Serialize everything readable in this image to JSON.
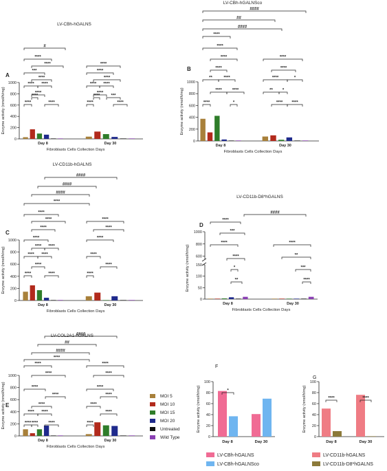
{
  "colors": {
    "moi5": "#a8803a",
    "moi10": "#b22a1c",
    "moi15": "#2f7d2a",
    "moi20": "#1f2a8c",
    "untreated": "#111111",
    "wildtype": "#8a3fb3",
    "f_cbh": "#f06b94",
    "f_cbhco": "#6fb5f0",
    "g_cd11b": "#ef7c84",
    "g_d8": "#8c7a3a"
  },
  "legend": {
    "items": [
      {
        "label": "MOI 5",
        "color": "#a8803a"
      },
      {
        "label": "MOI 10",
        "color": "#b22a1c"
      },
      {
        "label": "MOI 15",
        "color": "#2f7d2a"
      },
      {
        "label": "MOI 20",
        "color": "#1f2a8c"
      },
      {
        "label": "Untreated",
        "color": "#111111"
      },
      {
        "label": "Wild Type",
        "color": "#8a3fb3"
      }
    ]
  },
  "chart_data": [
    {
      "panel": "A",
      "type": "bar",
      "title": "LV-CBh-hGALNS",
      "xlabel": "Fibroblasts Cells Collection Days",
      "ylabel": "Enzyme activity (nmol/h/mg)",
      "ylim": [
        0,
        1000
      ],
      "yticks": [
        0,
        200,
        400,
        600,
        800,
        1000
      ],
      "categories": [
        "Day 8",
        "Day 30"
      ],
      "series": [
        {
          "name": "MOI 5",
          "values": [
            30,
            40
          ]
        },
        {
          "name": "MOI 10",
          "values": [
            170,
            130
          ]
        },
        {
          "name": "MOI 15",
          "values": [
            95,
            85
          ]
        },
        {
          "name": "MOI 20",
          "values": [
            75,
            35
          ]
        },
        {
          "name": "Untreated",
          "values": [
            3,
            3
          ]
        },
        {
          "name": "Wild Type",
          "values": [
            8,
            8
          ]
        }
      ],
      "annotations": [
        "****",
        "****",
        "****",
        "****",
        "****",
        "****",
        "****",
        "****",
        "***",
        "****",
        "#",
        "****",
        "****",
        "****",
        "****",
        "****",
        "****",
        "****",
        "****",
        "***",
        "****"
      ]
    },
    {
      "panel": "B",
      "type": "bar",
      "title": "LV-CBh-hGALNSco",
      "xlabel": "Fibroblasts Cells Collection Days",
      "ylabel": "Enzyme activity (nmol/h/mg)",
      "ylim": [
        0,
        1000
      ],
      "yticks": [
        0,
        200,
        400,
        600,
        800,
        1000
      ],
      "categories": [
        "Day 8",
        "Day 30"
      ],
      "series": [
        {
          "name": "MOI 5",
          "values": [
            375,
            75
          ]
        },
        {
          "name": "MOI 10",
          "values": [
            145,
            95
          ]
        },
        {
          "name": "MOI 15",
          "values": [
            425,
            20
          ]
        },
        {
          "name": "MOI 20",
          "values": [
            25,
            60
          ]
        },
        {
          "name": "Untreated",
          "values": [
            3,
            3
          ]
        },
        {
          "name": "Wild Type",
          "values": [
            8,
            8
          ]
        }
      ],
      "annotations": [
        "####",
        "##",
        "####",
        "****",
        "****",
        "****",
        "****",
        "**",
        "****",
        "****",
        "****",
        "****",
        "*",
        "****",
        "****",
        "****",
        "*",
        "**",
        "*",
        "****",
        "****"
      ]
    },
    {
      "panel": "C",
      "type": "bar",
      "title": "LV-CD11b-hGALNS",
      "xlabel": "Fibroblasts Cells Collection Days",
      "ylabel": "Enzyme activity (nmol/h/mg)",
      "ylim": [
        0,
        1000
      ],
      "yticks": [
        0,
        200,
        400,
        600,
        800,
        1000
      ],
      "categories": [
        "Day 8",
        "Day 30"
      ],
      "series": [
        {
          "name": "MOI 5",
          "values": [
            145,
            70
          ]
        },
        {
          "name": "MOI 10",
          "values": [
            250,
            130
          ]
        },
        {
          "name": "MOI 15",
          "values": [
            170,
            5
          ]
        },
        {
          "name": "MOI 20",
          "values": [
            45,
            70
          ]
        },
        {
          "name": "Untreated",
          "values": [
            3,
            3
          ]
        },
        {
          "name": "Wild Type",
          "values": [
            8,
            8
          ]
        }
      ],
      "annotations": [
        "####",
        "####",
        "####",
        "****",
        "****",
        "****",
        "****",
        "****",
        "****",
        "****",
        "****",
        "****",
        "****",
        "****",
        "****",
        "****",
        "****",
        "****",
        "****",
        "****",
        "****"
      ]
    },
    {
      "panel": "D",
      "type": "bar",
      "title": "LV-CD11b-D8*hGALNS",
      "xlabel": "Fibroblasts Cells Collection Days",
      "ylabel": "Enzyme activity (nmol/h/mg)",
      "ylim": [
        0,
        1000
      ],
      "yticks": [
        0,
        50,
        100,
        150,
        600,
        800,
        1000
      ],
      "axis_break": [
        150,
        550
      ],
      "categories": [
        "Day 8",
        "Day 30"
      ],
      "series": [
        {
          "name": "MOI 5",
          "values": [
            2,
            2
          ]
        },
        {
          "name": "MOI 10",
          "values": [
            2,
            2
          ]
        },
        {
          "name": "MOI 15",
          "values": [
            3,
            2
          ]
        },
        {
          "name": "MOI 20",
          "values": [
            8,
            2
          ]
        },
        {
          "name": "Untreated",
          "values": [
            2,
            2
          ]
        },
        {
          "name": "Wild Type",
          "values": [
            10,
            10
          ]
        }
      ],
      "annotations": [
        "####",
        "****",
        "***",
        "****",
        "****",
        "*",
        "**",
        "****",
        "**",
        "***",
        "****"
      ]
    },
    {
      "panel": "E",
      "type": "bar",
      "title": "LV-COL2A1-hGALNS",
      "xlabel": "Fibroblasts Cells Collection Days",
      "ylabel": "Enzyme activity (nmol/h/mg)",
      "ylim": [
        0,
        1000
      ],
      "yticks": [
        0,
        200,
        400,
        600,
        800,
        1000
      ],
      "categories": [
        "Day 8",
        "Day 30"
      ],
      "series": [
        {
          "name": "MOI 5",
          "values": [
            110,
            30
          ]
        },
        {
          "name": "MOI 10",
          "values": [
            45,
            225
          ]
        },
        {
          "name": "MOI 15",
          "values": [
            110,
            175
          ]
        },
        {
          "name": "MOI 20",
          "values": [
            170,
            165
          ]
        },
        {
          "name": "Untreated",
          "values": [
            3,
            3
          ]
        },
        {
          "name": "Wild Type",
          "values": [
            8,
            8
          ]
        }
      ],
      "annotations": [
        "####",
        "##",
        "####",
        "****",
        "****",
        "****",
        "****",
        "****",
        "****",
        "****",
        "****",
        "****",
        "****",
        "****",
        "****",
        "****",
        "****",
        "****",
        "****",
        "****",
        "****"
      ]
    },
    {
      "panel": "F",
      "type": "bar",
      "ylabel": "Enzyme activity (nmol/h/mg)",
      "ylim": [
        0,
        100
      ],
      "yticks": [
        0,
        20,
        40,
        60,
        80,
        100
      ],
      "categories": [
        "Day 8",
        "Day 30"
      ],
      "series": [
        {
          "name": "LV-CBh-hGALNS",
          "values": [
            83,
            41
          ]
        },
        {
          "name": "LV-CBh-hGALNSco",
          "values": [
            37,
            69
          ]
        }
      ],
      "annotations": [
        "*"
      ]
    },
    {
      "panel": "G",
      "type": "bar",
      "ylabel": "Enzyme activity (nmol/h/mg)",
      "ylim": [
        0,
        100
      ],
      "yticks": [
        0,
        20,
        40,
        60,
        80,
        100
      ],
      "categories": [
        "Day 8",
        "Day 30"
      ],
      "series": [
        {
          "name": "LV-CD11b-hGALNS",
          "values": [
            51,
            76
          ]
        },
        {
          "name": "LV-CD11b-D8*hGALNS",
          "values": [
            10,
            0
          ]
        }
      ],
      "annotations": [
        "****",
        "****"
      ]
    }
  ]
}
